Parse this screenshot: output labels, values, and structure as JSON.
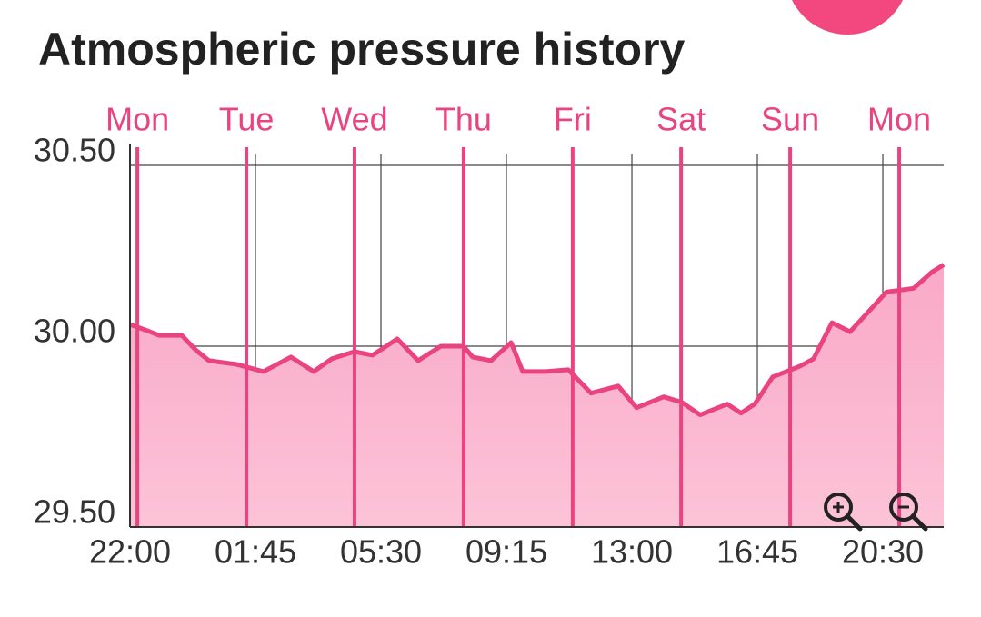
{
  "chart_data": {
    "type": "area",
    "title": "Atmospheric pressure history",
    "x": [
      0,
      0.46,
      0.87,
      1.55,
      1.96,
      2.36,
      3.18,
      3.99,
      4.81,
      5.49,
      6.03,
      6.71,
      7.25,
      7.99,
      8.61,
      9.29,
      9.97,
      10.24,
      10.79,
      11.39,
      11.74,
      12.42,
      13.1,
      13.78,
      14.59,
      15.14,
      15.95,
      16.49,
      17.04,
      17.85,
      18.26,
      18.67,
      19.21,
      20.03,
      20.43,
      20.98,
      21.52,
      22.07,
      22.61,
      23.42,
      23.97,
      24.32
    ],
    "series": [
      {
        "color": "#e9447f",
        "fill": "#fbb6cd",
        "values": [
          30.06,
          30.045,
          30.03,
          30.03,
          29.99,
          29.96,
          29.95,
          29.93,
          29.97,
          29.93,
          29.965,
          29.985,
          29.975,
          30.02,
          29.96,
          30.0,
          30.0,
          29.97,
          29.96,
          30.01,
          29.93,
          29.93,
          29.935,
          29.87,
          29.89,
          29.83,
          29.86,
          29.845,
          29.81,
          29.84,
          29.815,
          29.84,
          29.915,
          29.945,
          29.965,
          30.065,
          30.04,
          30.095,
          30.15,
          30.16,
          30.205,
          30.225
        ]
      }
    ],
    "xlim": [
      0,
      24.32
    ],
    "xticks": [
      {
        "value": 0,
        "label": "22:00"
      },
      {
        "value": 3.75,
        "label": "01:45"
      },
      {
        "value": 7.5,
        "label": "05:30"
      },
      {
        "value": 11.25,
        "label": "09:15"
      },
      {
        "value": 15,
        "label": "13:00"
      },
      {
        "value": 18.75,
        "label": "16:45"
      },
      {
        "value": 22.5,
        "label": "20:30"
      }
    ],
    "ylim": [
      29.5,
      30.5
    ],
    "yticks": [
      {
        "value": 29.5,
        "label": "29.50"
      },
      {
        "value": 30,
        "label": "30.00"
      },
      {
        "value": 30.5,
        "label": "30.50"
      }
    ],
    "day_markers": [
      {
        "value": 0.22,
        "label": "Mon"
      },
      {
        "value": 3.48,
        "label": "Tue"
      },
      {
        "value": 6.71,
        "label": "Wed"
      },
      {
        "value": 9.97,
        "label": "Thu"
      },
      {
        "value": 13.23,
        "label": "Fri"
      },
      {
        "value": 16.47,
        "label": "Sat"
      },
      {
        "value": 19.73,
        "label": "Sun"
      },
      {
        "value": 22.99,
        "label": "Mon"
      }
    ],
    "day_marker_color": "#e9447f",
    "grid": true
  }
}
